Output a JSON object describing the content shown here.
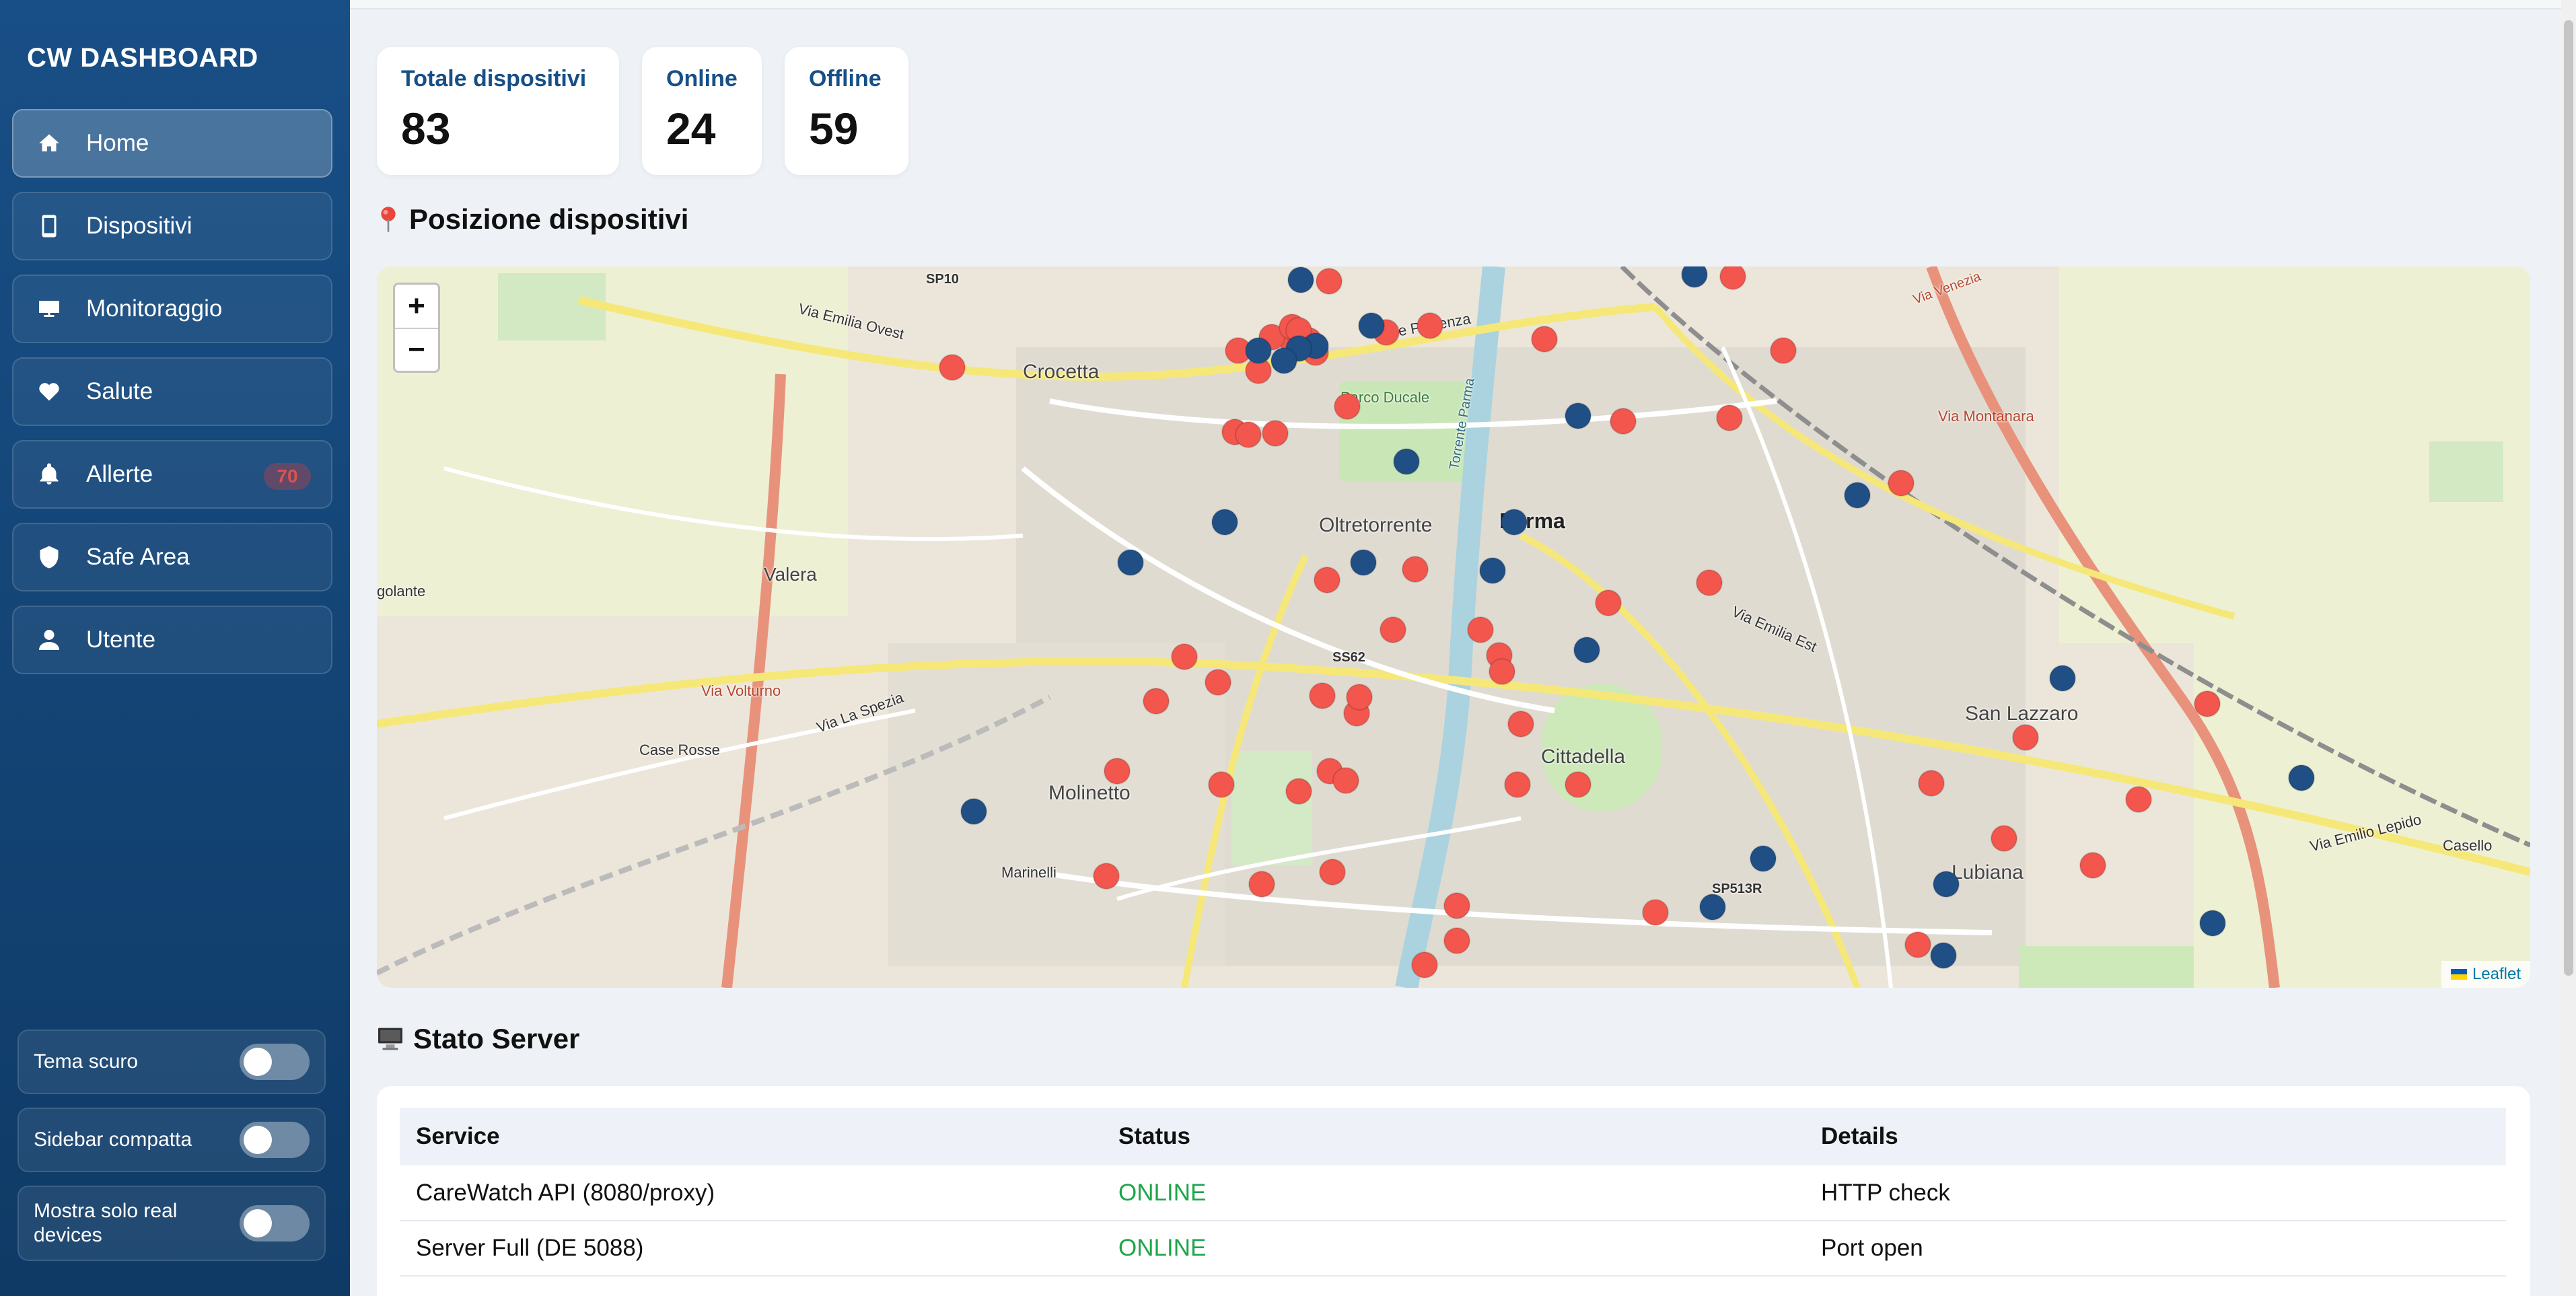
{
  "sidebar": {
    "brand": "CW DASHBOARD",
    "items": [
      {
        "label": "Home",
        "icon": "home-icon",
        "active": true
      },
      {
        "label": "Dispositivi",
        "icon": "phone-icon"
      },
      {
        "label": "Monitoraggio",
        "icon": "monitor-icon"
      },
      {
        "label": "Salute",
        "icon": "heart-icon"
      },
      {
        "label": "Allerte",
        "icon": "bell-icon",
        "badge": "70"
      },
      {
        "label": "Safe Area",
        "icon": "shield-icon"
      },
      {
        "label": "Utente",
        "icon": "user-icon"
      }
    ],
    "toggles": [
      {
        "label": "Tema scuro",
        "on": false
      },
      {
        "label": "Sidebar compatta",
        "on": false
      },
      {
        "label": "Mostra solo real devices",
        "on": false
      }
    ]
  },
  "stats": [
    {
      "title": "Totale dispositivi",
      "value": "83"
    },
    {
      "title": "Online",
      "value": "24"
    },
    {
      "title": "Offline",
      "value": "59"
    }
  ],
  "map_section": {
    "title": "Posizione dispositivi",
    "zoom_in": "+",
    "zoom_out": "−",
    "attribution": "Leaflet",
    "labels": {
      "parma": "Parma",
      "oltretorrente": "Oltretorrente",
      "crocetta": "Crocetta",
      "valera": "Valera",
      "molinetto": "Molinetto",
      "cittadella": "Cittadella",
      "san_lazzaro": "San Lazzaro",
      "lubiana": "Lubiana",
      "case_rosse": "Case Rosse",
      "parco_ducale": "Parco Ducale",
      "marinelli": "Marinelli",
      "casello": "Casello",
      "golante": "golante",
      "sp10": "SP10",
      "ss62": "SS62",
      "sp513r": "SP513R",
      "via_emilia_ovest": "Via Emilia Ovest",
      "via_emilia_est": "Via Emilia Est",
      "via_volturno": "Via Volturno",
      "viale_piacenza": "Viale Piacenza",
      "via_la_spezia": "Via La Spezia",
      "torrente_parma": "Torrente Parma",
      "via_montanara": "Via Montanara",
      "via_venezia": "Via Venezia",
      "via_emilio_lepido": "Via Emilio Lepido"
    },
    "colors": {
      "online": "#1f4f85",
      "offline": "#f2564d"
    },
    "markers_online_count": 24,
    "markers_offline_count": 59
  },
  "server_section": {
    "title": "Stato Server",
    "columns": [
      "Service",
      "Status",
      "Details"
    ],
    "rows": [
      {
        "service": "CareWatch API (8080/proxy)",
        "status": "ONLINE",
        "details": "HTTP check"
      },
      {
        "service": "Server Full (DE 5088)",
        "status": "ONLINE",
        "details": "Port open"
      }
    ]
  }
}
